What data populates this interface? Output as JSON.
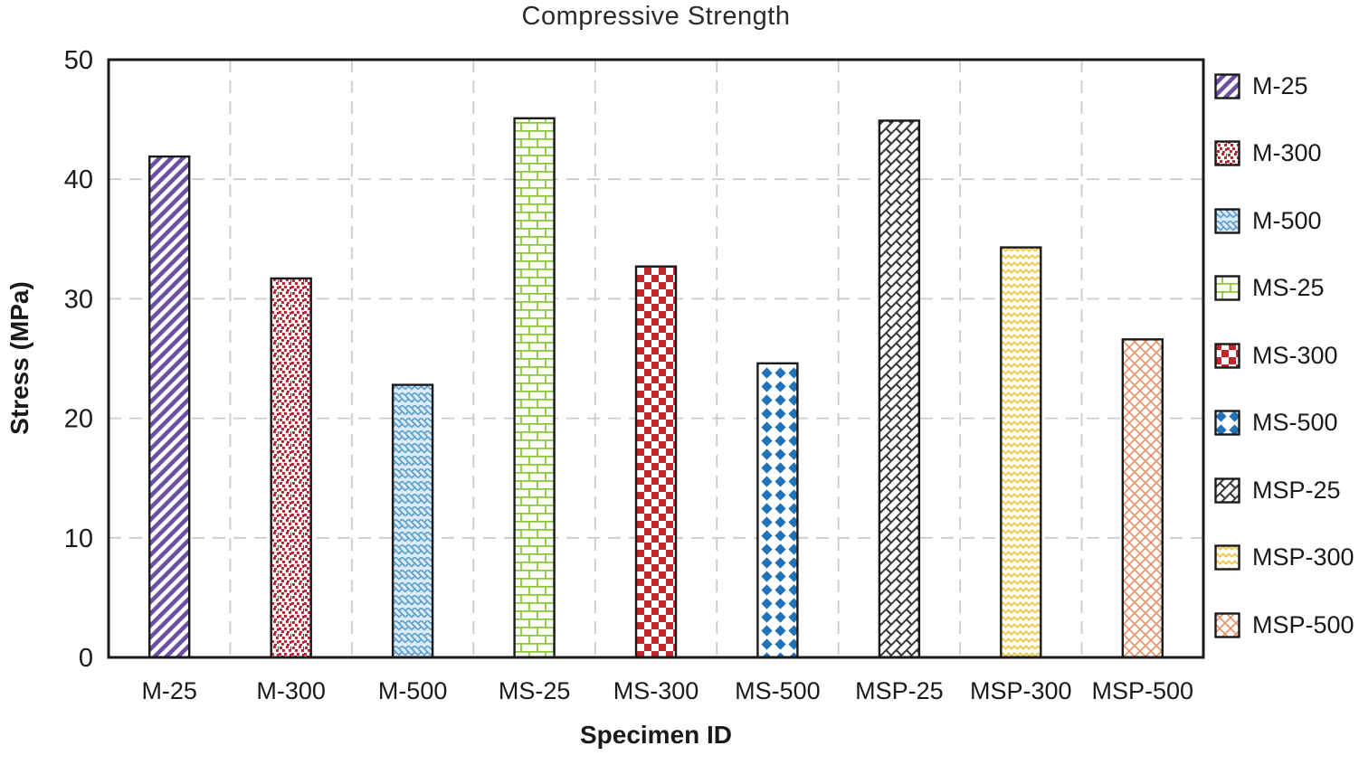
{
  "chart_data": {
    "type": "bar",
    "title": "Compressive Strength",
    "xlabel": "Specimen ID",
    "ylabel": "Stress (MPa)",
    "ylim": [
      0,
      50
    ],
    "yticks": [
      0,
      10,
      20,
      30,
      40,
      50
    ],
    "grid": "dashed light-gray horizontal lines at each y tick and vertical lines at category boundaries",
    "legend_position": "right",
    "categories": [
      "M-25",
      "M-300",
      "M-500",
      "MS-25",
      "MS-300",
      "MS-500",
      "MSP-25",
      "MSP-300",
      "MSP-500"
    ],
    "values": [
      41.9,
      31.7,
      22.8,
      45.1,
      32.7,
      24.6,
      44.9,
      34.3,
      26.6
    ],
    "legend": [
      "M-25",
      "M-300",
      "M-500",
      "MS-25",
      "MS-300",
      "MS-500",
      "MSP-25",
      "MSP-300",
      "MSP-500"
    ],
    "bar_styles": [
      {
        "label": "M-25",
        "pattern": "diagonal-stripe",
        "color": "#6B4FA0",
        "bg": "#ffffff"
      },
      {
        "label": "M-300",
        "pattern": "speckle",
        "color": "#B91C35",
        "bg": "#fffdf5"
      },
      {
        "label": "M-500",
        "pattern": "basket-weave",
        "color": "#5E9DC8",
        "bg": "#D9ECF7"
      },
      {
        "label": "MS-25",
        "pattern": "brick",
        "color": "#8CC63F",
        "bg": "#fcfff5"
      },
      {
        "label": "MS-300",
        "pattern": "checker",
        "color": "#C1272D",
        "bg": "#ffffff"
      },
      {
        "label": "MS-500",
        "pattern": "diamond",
        "color": "#1F72B8",
        "bg": "#ffffff"
      },
      {
        "label": "MSP-25",
        "pattern": "diagonal-brick",
        "color": "#333333",
        "bg": "#ffffff"
      },
      {
        "label": "MSP-300",
        "pattern": "zigzag",
        "color": "#EDC53F",
        "bg": "#fffef8"
      },
      {
        "label": "MSP-500",
        "pattern": "crosshatch",
        "color": "#E8936B",
        "bg": "#ffffff"
      }
    ]
  },
  "style": {
    "axis_color": "#1a1a1a",
    "grid_color": "#cbcbcb",
    "title_color": "#2b2b2b",
    "background": "#ffffff"
  }
}
